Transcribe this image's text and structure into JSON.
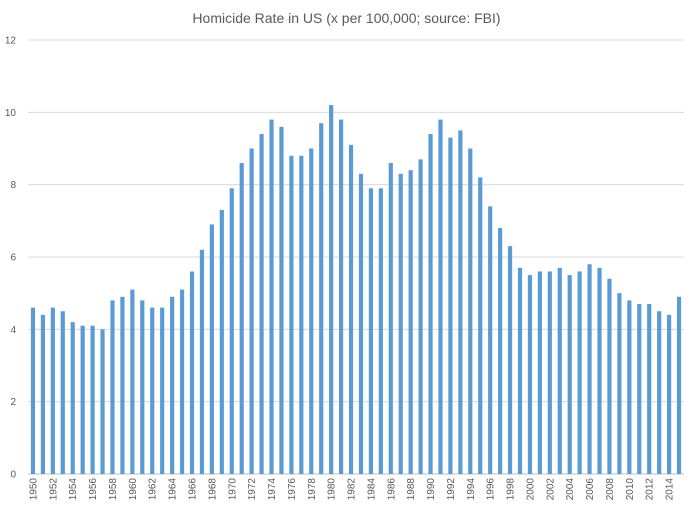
{
  "chart_data": {
    "type": "bar",
    "title": "Homicide Rate in US (x per 100,000; source: FBI)",
    "xlabel": "",
    "ylabel": "",
    "ylim": [
      0,
      12
    ],
    "yticks": [
      0,
      2,
      4,
      6,
      8,
      10,
      12
    ],
    "grid": true,
    "legend": "none",
    "bar_color": "#5b9bd5",
    "categories": [
      "1950",
      "1951",
      "1952",
      "1953",
      "1954",
      "1955",
      "1956",
      "1957",
      "1958",
      "1959",
      "1960",
      "1961",
      "1962",
      "1963",
      "1964",
      "1965",
      "1966",
      "1967",
      "1968",
      "1969",
      "1970",
      "1971",
      "1972",
      "1973",
      "1974",
      "1975",
      "1976",
      "1977",
      "1978",
      "1979",
      "1980",
      "1981",
      "1982",
      "1983",
      "1984",
      "1985",
      "1986",
      "1987",
      "1988",
      "1989",
      "1990",
      "1991",
      "1992",
      "1993",
      "1994",
      "1995",
      "1996",
      "1997",
      "1998",
      "1999",
      "2000",
      "2001",
      "2002",
      "2003",
      "2004",
      "2005",
      "2006",
      "2007",
      "2008",
      "2009",
      "2010",
      "2011",
      "2012",
      "2013",
      "2014",
      "2015"
    ],
    "tick_labels": [
      "1950",
      "1952",
      "1954",
      "1956",
      "1958",
      "1960",
      "1962",
      "1964",
      "1966",
      "1968",
      "1970",
      "1972",
      "1974",
      "1976",
      "1978",
      "1980",
      "1982",
      "1984",
      "1986",
      "1988",
      "1990",
      "1992",
      "1994",
      "1996",
      "1998",
      "2000",
      "2002",
      "2004",
      "2006",
      "2008",
      "2010",
      "2012",
      "2014"
    ],
    "values": [
      4.6,
      4.4,
      4.6,
      4.5,
      4.2,
      4.1,
      4.1,
      4.0,
      4.8,
      4.9,
      5.1,
      4.8,
      4.6,
      4.6,
      4.9,
      5.1,
      5.6,
      6.2,
      6.9,
      7.3,
      7.9,
      8.6,
      9.0,
      9.4,
      9.8,
      9.6,
      8.8,
      8.8,
      9.0,
      9.7,
      10.2,
      9.8,
      9.1,
      8.3,
      7.9,
      7.9,
      8.6,
      8.3,
      8.4,
      8.7,
      9.4,
      9.8,
      9.3,
      9.5,
      9.0,
      8.2,
      7.4,
      6.8,
      6.3,
      5.7,
      5.5,
      5.6,
      5.6,
      5.7,
      5.5,
      5.6,
      5.8,
      5.7,
      5.4,
      5.0,
      4.8,
      4.7,
      4.7,
      4.5,
      4.4,
      4.9
    ]
  }
}
